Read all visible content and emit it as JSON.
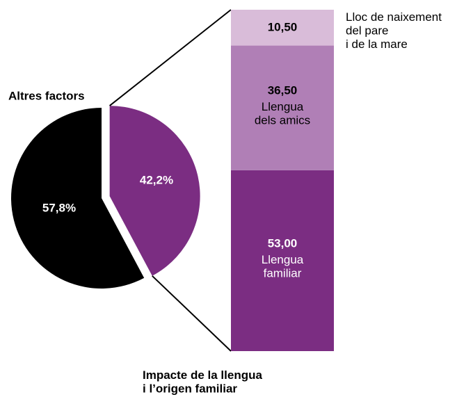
{
  "chart_data": {
    "type": "pie",
    "categories": [
      "Altres factors",
      "Impacte de la llengua\ni l’origen familiar"
    ],
    "values": [
      57.8,
      42.2
    ],
    "value_labels": [
      "57,8%",
      "42,2%"
    ],
    "colors": [
      "#000000",
      "#7b2d82"
    ],
    "breakdown": {
      "type": "bar",
      "categories": [
        "Llengua\nfamiliar",
        "Llengua\ndels amics",
        "Lloc de naixement\ndel pare\ni de la mare"
      ],
      "values": [
        53.0,
        36.5,
        10.5
      ],
      "value_labels": [
        "53,00",
        "36,50",
        "10,50"
      ],
      "colors": [
        "#7b2d82",
        "#b07fb6",
        "#d9bcd9"
      ],
      "text_colors": [
        "#ffffff",
        "#000000",
        "#000000"
      ]
    }
  }
}
